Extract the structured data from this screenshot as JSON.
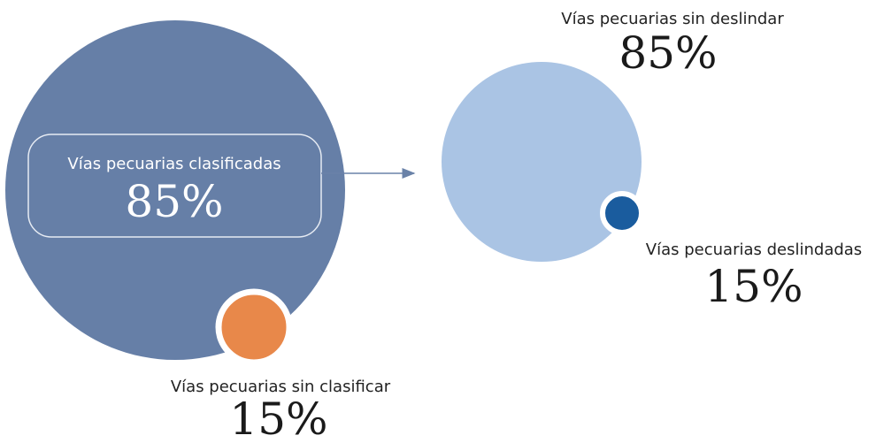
{
  "classified": {
    "label": "Vías pecuarias clasificadas",
    "value": "85%"
  },
  "unclassified": {
    "label": "Vías pecuarias sin clasificar",
    "value": "15%"
  },
  "undelimited": {
    "label": "Vías pecuarias sin deslindar",
    "value": "85%"
  },
  "delimited": {
    "label": "Vías pecuarias deslindadas",
    "value": "15%"
  }
}
